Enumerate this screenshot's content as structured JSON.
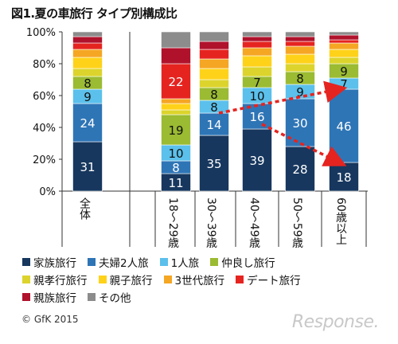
{
  "title": "図1.夏の車旅行 タイプ別構成比",
  "copyright": "© GfK 2015",
  "watermark": "Response.",
  "chart_data": {
    "type": "bar",
    "stacked": true,
    "ylim": [
      0,
      100
    ],
    "yticks": [
      "0%",
      "20%",
      "40%",
      "60%",
      "80%",
      "100%"
    ],
    "categories": [
      "全体",
      "18～29歳",
      "30～39歳",
      "40～49歳",
      "50～59歳",
      "60歳以上"
    ],
    "series": [
      {
        "name": "家族旅行",
        "color": "#17375e",
        "values": [
          31,
          11,
          35,
          39,
          28,
          18
        ],
        "labels": [
          "31",
          "11",
          "35",
          "39",
          "28",
          "18"
        ]
      },
      {
        "name": "夫婦2人旅",
        "color": "#2e75b6",
        "values": [
          24,
          8,
          14,
          16,
          30,
          46
        ],
        "labels": [
          "24",
          "8",
          "14",
          "16",
          "30",
          "46"
        ]
      },
      {
        "name": "1人旅",
        "color": "#5bc0eb",
        "values": [
          9,
          10,
          8,
          10,
          9,
          7
        ],
        "labels": [
          "9",
          "10",
          "8",
          "10",
          "9",
          "7"
        ]
      },
      {
        "name": "仲良し旅行",
        "color": "#9bbb32",
        "values": [
          8,
          19,
          8,
          7,
          8,
          9
        ],
        "labels": [
          "8",
          "19",
          "8",
          "7",
          "8",
          "9"
        ]
      },
      {
        "name": "親孝行旅行",
        "color": "#dcd42c",
        "values": [
          5,
          3,
          5,
          6,
          5,
          4
        ],
        "labels": [
          "",
          "",
          "",
          "",
          "",
          ""
        ]
      },
      {
        "name": "親子旅行",
        "color": "#ffd21a",
        "values": [
          7,
          4,
          7,
          7,
          6,
          5
        ],
        "labels": [
          "",
          "",
          "",
          "",
          "",
          ""
        ]
      },
      {
        "name": "3世代旅行",
        "color": "#f5a623",
        "values": [
          5,
          3,
          6,
          5,
          5,
          4
        ],
        "labels": [
          "",
          "",
          "",
          "",
          "",
          ""
        ]
      },
      {
        "name": "デート旅行",
        "color": "#e52420",
        "values": [
          4,
          22,
          6,
          4,
          3,
          2
        ],
        "labels": [
          "",
          "22",
          "",
          "",
          "",
          ""
        ]
      },
      {
        "name": "親族旅行",
        "color": "#b0122c",
        "values": [
          4,
          10,
          5,
          3,
          3,
          3
        ],
        "labels": [
          "",
          "",
          "",
          "",
          "",
          ""
        ]
      },
      {
        "name": "その他",
        "color": "#8c8c8c",
        "values": [
          3,
          10,
          6,
          3,
          3,
          2
        ],
        "labels": [
          "",
          "",
          "",
          "",
          "",
          ""
        ]
      }
    ],
    "arrows": [
      {
        "from_category": "30～39歳",
        "to_category": "60歳以上",
        "from_value": 49,
        "to_value": 64,
        "color": "#e52420"
      },
      {
        "from_category": "40～49歳",
        "to_category": "60歳以上",
        "from_value": 42,
        "to_value": 18,
        "color": "#e52420"
      }
    ]
  }
}
